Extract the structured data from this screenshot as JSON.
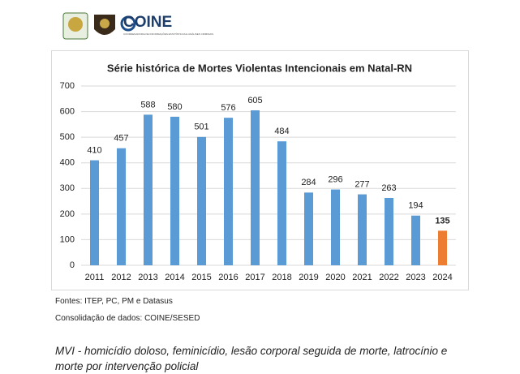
{
  "header": {
    "brand": "COINE",
    "brand_subtitle": "COORDENADORIA DE INFORMAÇÕES ESTATÍSTICAS E ANÁLISES CRIMINAIS"
  },
  "chart_data": {
    "type": "bar",
    "title": "Série histórica de Mortes Violentas Intencionais em Natal-RN",
    "categories": [
      "2011",
      "2012",
      "2013",
      "2014",
      "2015",
      "2016",
      "2017",
      "2018",
      "2019",
      "2020",
      "2021",
      "2022",
      "2023",
      "2024"
    ],
    "values": [
      410,
      457,
      588,
      580,
      501,
      576,
      605,
      484,
      284,
      296,
      277,
      263,
      194,
      135
    ],
    "colors": [
      "#5b9bd5",
      "#5b9bd5",
      "#5b9bd5",
      "#5b9bd5",
      "#5b9bd5",
      "#5b9bd5",
      "#5b9bd5",
      "#5b9bd5",
      "#5b9bd5",
      "#5b9bd5",
      "#5b9bd5",
      "#5b9bd5",
      "#5b9bd5",
      "#ed7d31"
    ],
    "ylim": [
      0,
      700
    ],
    "yticks": [
      0,
      100,
      200,
      300,
      400,
      500,
      600,
      700
    ],
    "grid": true
  },
  "footer": {
    "sources": "Fontes: ITEP, PC, PM e Datasus",
    "consolidation": "Consolidação de dados: COINE/SESED",
    "note_lines": [
      "MVI - homicídio doloso, feminicídio, lesão corporal seguida de morte, latrocínio e",
      "morte por intervenção policial"
    ]
  }
}
